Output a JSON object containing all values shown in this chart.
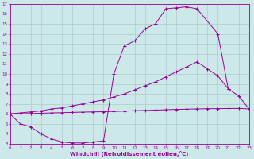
{
  "xlabel": "Windchill (Refroidissement éolien,°C)",
  "bg_color": "#cce8e8",
  "line_color": "#990099",
  "grid_color": "#aacccc",
  "xlim": [
    0,
    23
  ],
  "ylim": [
    3,
    17
  ],
  "xticks": [
    0,
    1,
    2,
    3,
    4,
    5,
    6,
    7,
    8,
    9,
    10,
    11,
    12,
    13,
    14,
    15,
    16,
    17,
    18,
    19,
    20,
    21,
    22,
    23
  ],
  "yticks": [
    3,
    4,
    5,
    6,
    7,
    8,
    9,
    10,
    11,
    12,
    13,
    14,
    15,
    16,
    17
  ],
  "upper_x": [
    0,
    1,
    2,
    3,
    4,
    5,
    6,
    7,
    8,
    9,
    10,
    11,
    12,
    13,
    14,
    15,
    16,
    17,
    18,
    20,
    21
  ],
  "upper_y": [
    6.0,
    5.0,
    4.7,
    4.0,
    3.5,
    3.2,
    3.1,
    3.1,
    3.2,
    3.3,
    10.0,
    12.8,
    13.3,
    14.5,
    15.0,
    16.5,
    16.6,
    16.7,
    16.5,
    14.0,
    8.5
  ],
  "middle_x": [
    0,
    1,
    2,
    3,
    4,
    5,
    6,
    7,
    8,
    9,
    10,
    11,
    12,
    13,
    14,
    15,
    16,
    17,
    18,
    19,
    20,
    21,
    22,
    23
  ],
  "middle_y": [
    6.0,
    6.1,
    6.2,
    6.3,
    6.5,
    6.6,
    6.8,
    7.0,
    7.2,
    7.4,
    7.7,
    8.0,
    8.4,
    8.8,
    9.2,
    9.7,
    10.2,
    10.7,
    11.2,
    10.5,
    9.8,
    8.5,
    7.8,
    6.5
  ],
  "lower_x": [
    0,
    1,
    2,
    3,
    4,
    5,
    6,
    7,
    8,
    9,
    10,
    11,
    12,
    13,
    14,
    15,
    16,
    17,
    18,
    19,
    20,
    21,
    22,
    23
  ],
  "lower_y": [
    6.0,
    6.02,
    6.04,
    6.06,
    6.1,
    6.12,
    6.15,
    6.18,
    6.2,
    6.22,
    6.25,
    6.28,
    6.32,
    6.35,
    6.38,
    6.42,
    6.45,
    6.48,
    6.5,
    6.52,
    6.53,
    6.54,
    6.55,
    6.5
  ]
}
